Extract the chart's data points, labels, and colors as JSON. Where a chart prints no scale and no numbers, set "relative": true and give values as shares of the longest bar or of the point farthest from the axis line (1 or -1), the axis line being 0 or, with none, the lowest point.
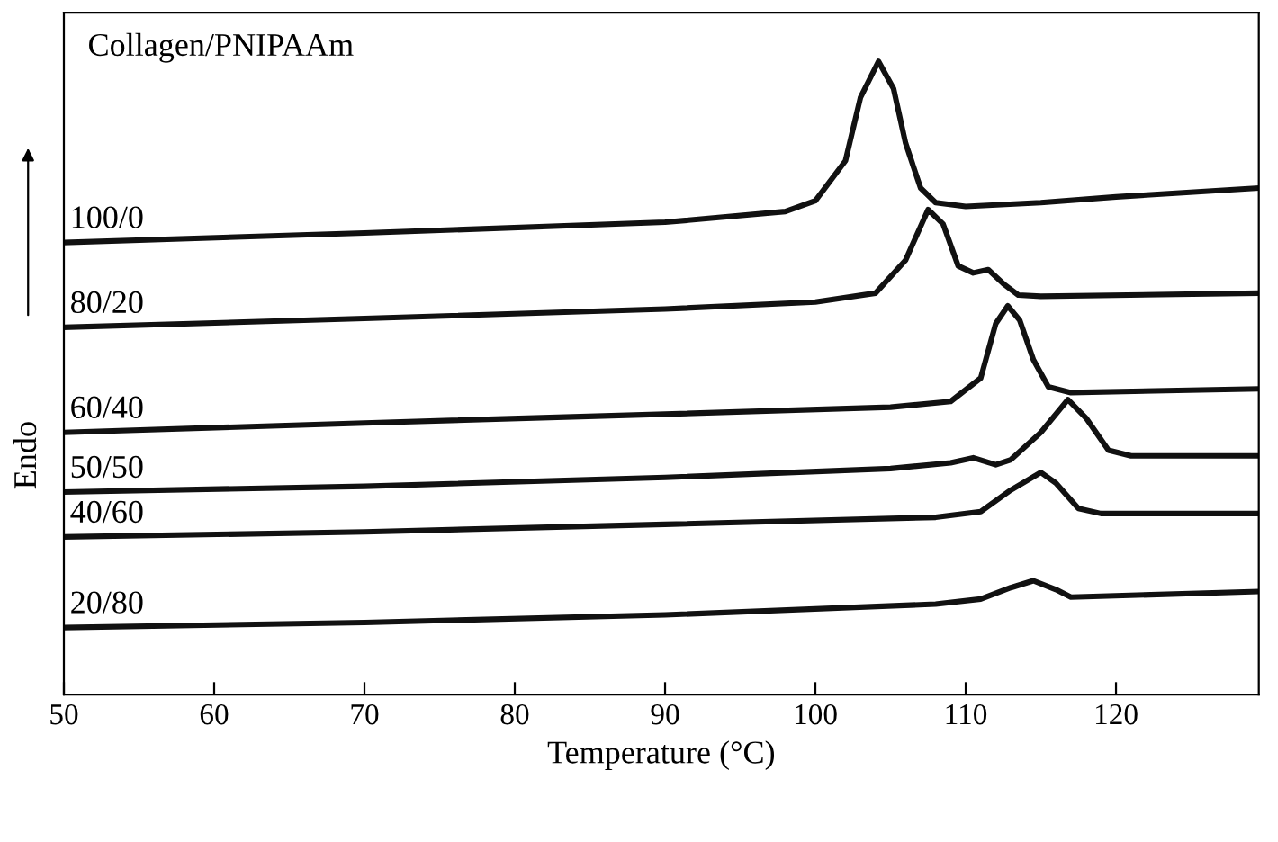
{
  "chart_data": {
    "type": "line",
    "relative": true,
    "title": "Collagen/PNIPAAm",
    "xlabel": "Temperature (°C)",
    "ylabel": "Endo",
    "xlim": [
      50,
      129.5
    ],
    "xticks": [
      50,
      60,
      70,
      80,
      90,
      100,
      110,
      120
    ],
    "tick_labels": "x",
    "legend": false,
    "grid": false,
    "marker": "none",
    "line_style": "solid",
    "series": [
      {
        "name": "100/0",
        "color": "#111111",
        "x": [
          50,
          70,
          90,
          98,
          100,
          102,
          103,
          104.2,
          105.2,
          106,
          107,
          108,
          110,
          115,
          120,
          129.5
        ],
        "values": [
          0.714,
          0.729,
          0.746,
          0.763,
          0.78,
          0.843,
          0.943,
          1.0,
          0.957,
          0.871,
          0.8,
          0.777,
          0.771,
          0.777,
          0.786,
          0.8
        ]
      },
      {
        "name": "80/20",
        "color": "#111111",
        "x": [
          50,
          70,
          90,
          100,
          104,
          106,
          107.5,
          108.5,
          109.5,
          110.5,
          111.5,
          112.5,
          113.5,
          115,
          129.5
        ],
        "values": [
          0.58,
          0.594,
          0.609,
          0.62,
          0.634,
          0.686,
          0.766,
          0.743,
          0.677,
          0.666,
          0.671,
          0.649,
          0.631,
          0.629,
          0.634
        ]
      },
      {
        "name": "60/40",
        "color": "#111111",
        "x": [
          50,
          70,
          90,
          105,
          109,
          111,
          112,
          112.8,
          113.6,
          114.5,
          115.5,
          117,
          129.5
        ],
        "values": [
          0.414,
          0.429,
          0.443,
          0.454,
          0.463,
          0.5,
          0.586,
          0.614,
          0.591,
          0.529,
          0.486,
          0.477,
          0.483
        ]
      },
      {
        "name": "50/50",
        "color": "#111111",
        "x": [
          50,
          70,
          90,
          105,
          109,
          110.5,
          112,
          113,
          115,
          116.8,
          118,
          119.5,
          121,
          129.5
        ],
        "values": [
          0.32,
          0.329,
          0.343,
          0.357,
          0.366,
          0.374,
          0.363,
          0.371,
          0.414,
          0.466,
          0.437,
          0.386,
          0.377,
          0.377
        ]
      },
      {
        "name": "40/60",
        "color": "#111111",
        "x": [
          50,
          70,
          90,
          108,
          111,
          113,
          115,
          116,
          117.5,
          119,
          129.5
        ],
        "values": [
          0.249,
          0.257,
          0.269,
          0.28,
          0.289,
          0.323,
          0.351,
          0.334,
          0.294,
          0.286,
          0.286
        ]
      },
      {
        "name": "20/80",
        "color": "#111111",
        "x": [
          50,
          70,
          90,
          108,
          111,
          113,
          114.5,
          116,
          117,
          129.5
        ],
        "values": [
          0.106,
          0.114,
          0.126,
          0.143,
          0.151,
          0.169,
          0.18,
          0.166,
          0.154,
          0.163
        ]
      }
    ]
  }
}
